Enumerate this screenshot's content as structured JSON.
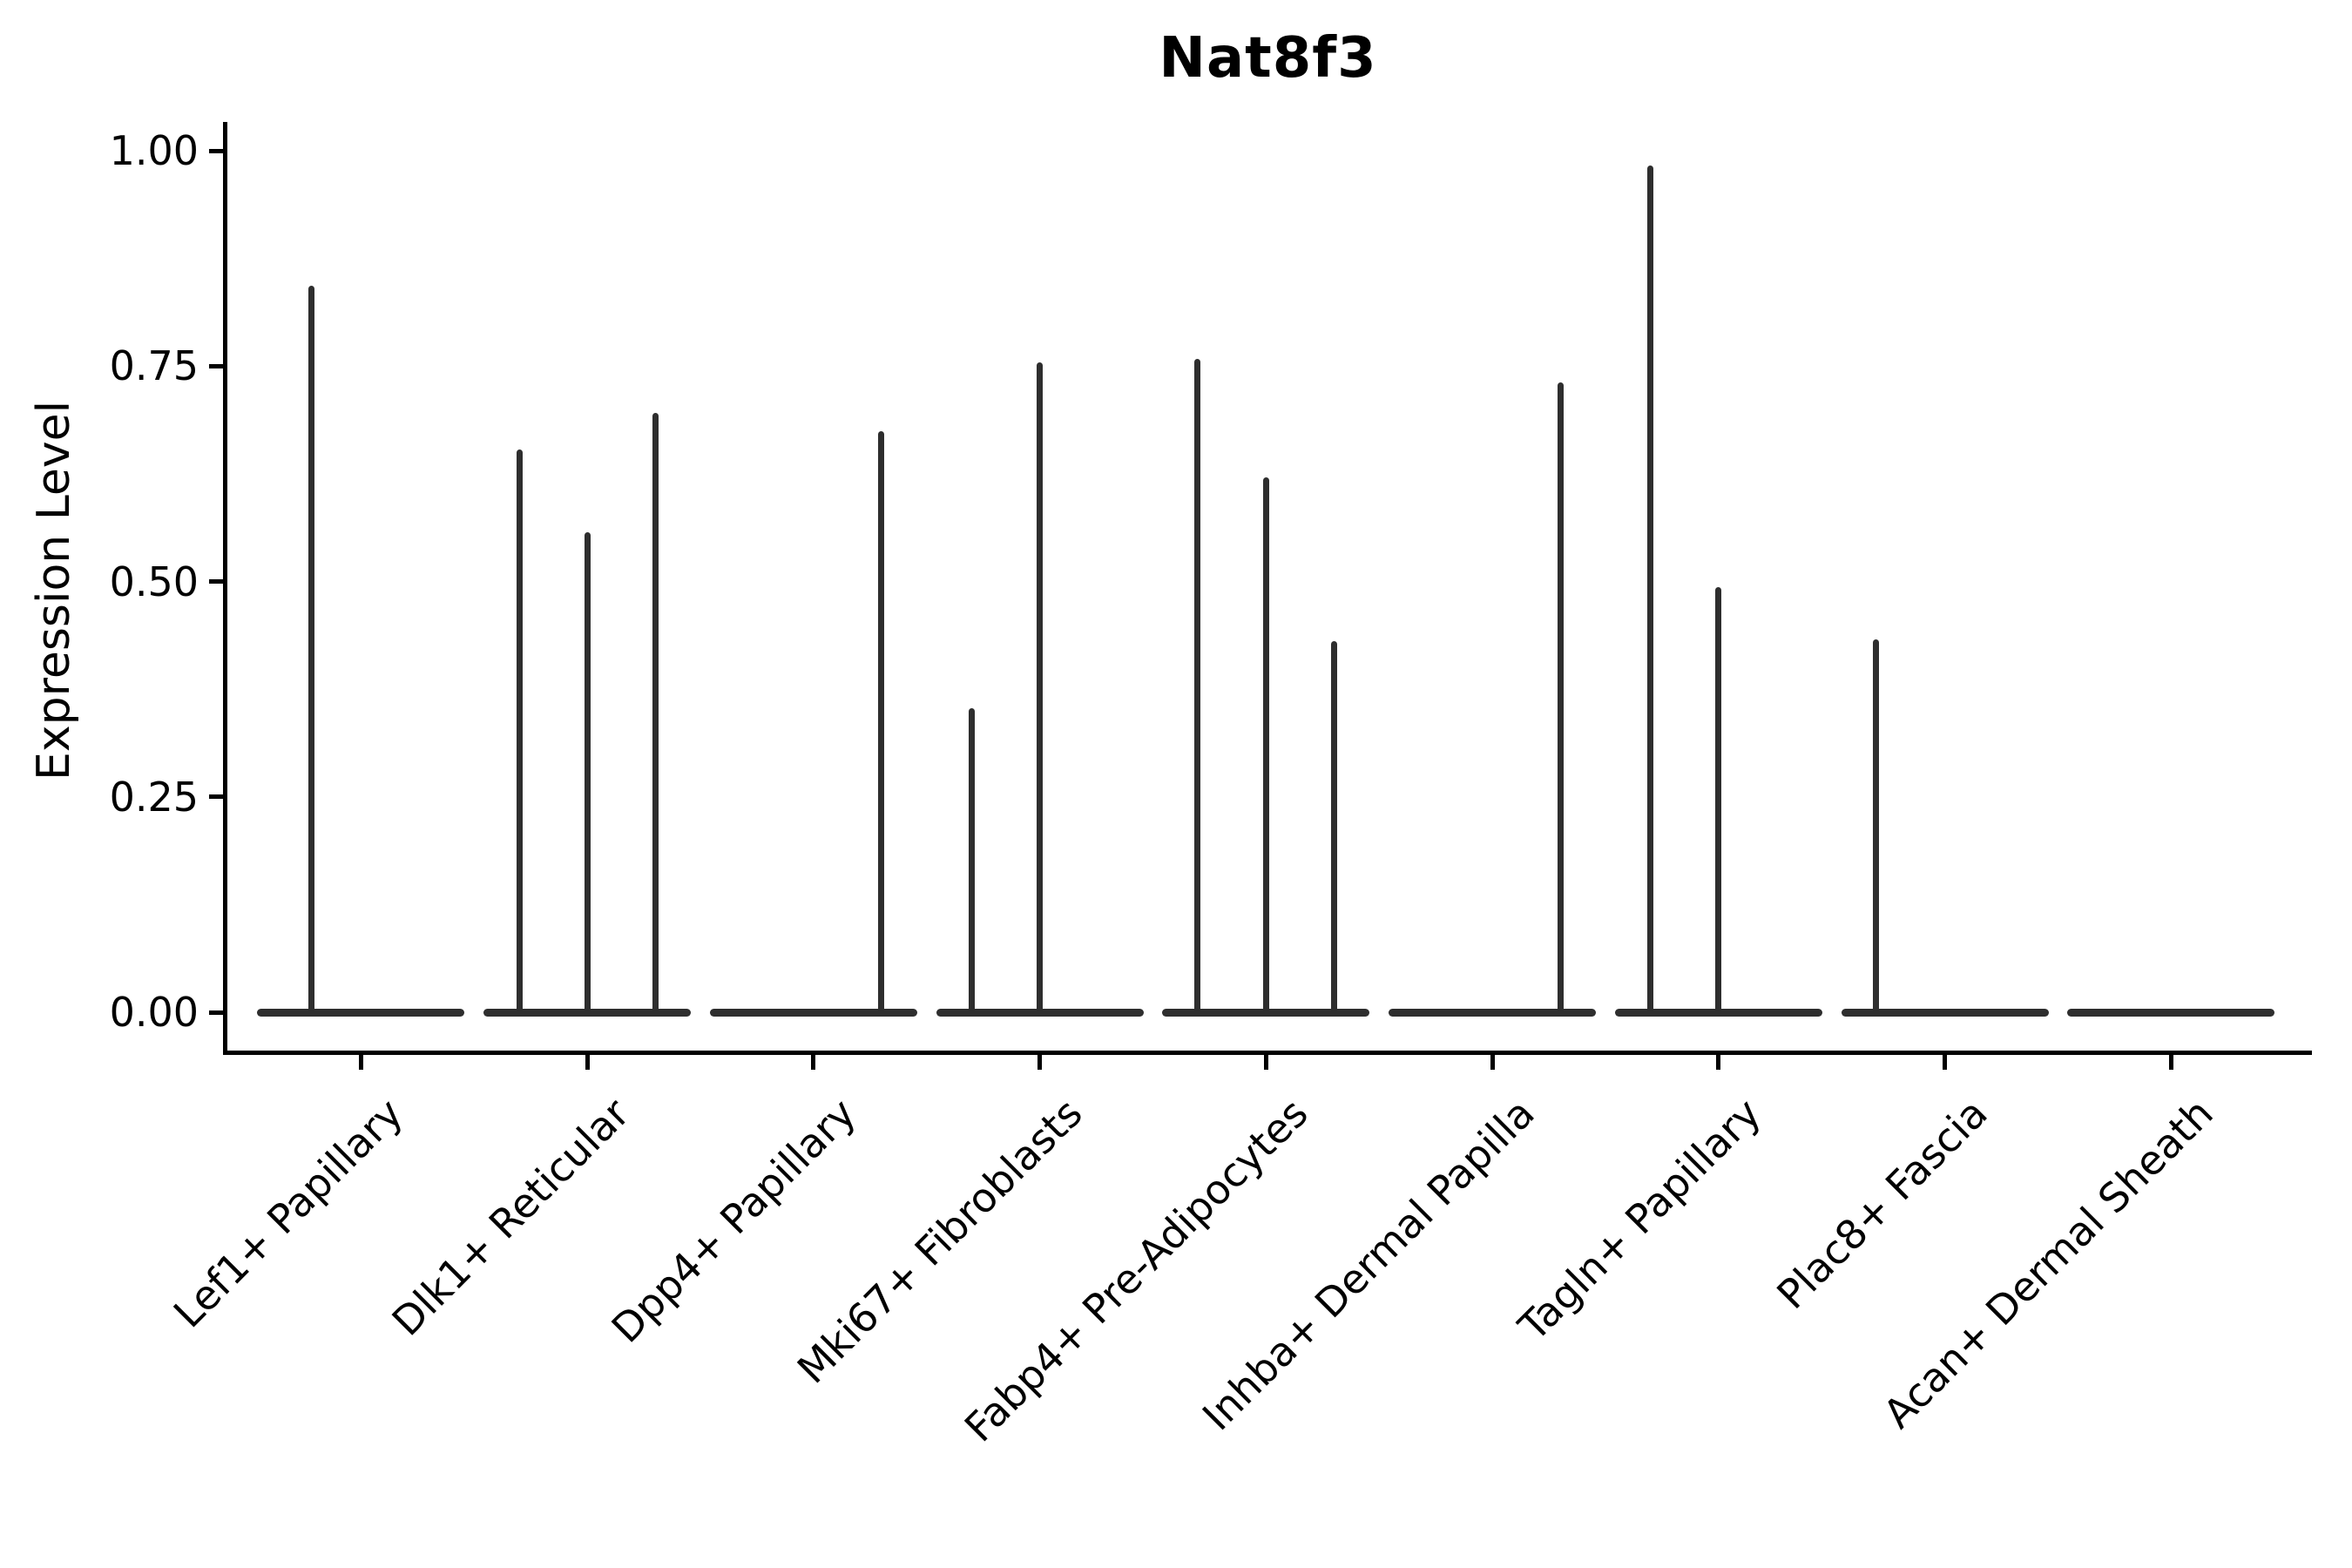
{
  "figure": {
    "background": "#ffffff"
  },
  "colors": {
    "violin": "#2e2e2e",
    "axis": "#000000",
    "text": "#000000"
  },
  "chart_data": {
    "type": "violin",
    "title": "Nat8f3",
    "xlabel": "",
    "ylabel": "Expression Level",
    "ylim": [
      -0.05,
      1.07
    ],
    "grid": false,
    "legend": "none",
    "x_tick_rotation_deg": 45,
    "y_ticks": [
      {
        "label": "1.00",
        "value": 1.0
      },
      {
        "label": "0.75",
        "value": 0.75
      },
      {
        "label": "0.50",
        "value": 0.5
      },
      {
        "label": "0.25",
        "value": 0.25
      },
      {
        "label": "0.00",
        "value": 0.0
      }
    ],
    "categories": [
      {
        "label": "Lef1+ Papillary",
        "spikes": [
          {
            "dx": -57,
            "value": 0.843
          }
        ]
      },
      {
        "label": "Dlk1+ Reticular",
        "spikes": [
          {
            "dx": -78,
            "value": 0.653
          },
          {
            "dx": 0,
            "value": 0.557
          },
          {
            "dx": 78,
            "value": 0.696
          }
        ]
      },
      {
        "label": "Dpp4+ Papillary",
        "spikes": [
          {
            "dx": 78,
            "value": 0.674
          }
        ]
      },
      {
        "label": "Mki67+ Fibroblasts",
        "spikes": [
          {
            "dx": -78,
            "value": 0.353
          },
          {
            "dx": 0,
            "value": 0.754
          }
        ]
      },
      {
        "label": "Fabp4+ Pre-Adipocytes",
        "spikes": [
          {
            "dx": -79,
            "value": 0.758
          },
          {
            "dx": 0,
            "value": 0.621
          },
          {
            "dx": 78,
            "value": 0.431
          }
        ]
      },
      {
        "label": "Inhba+ Dermal Papilla",
        "spikes": [
          {
            "dx": 78,
            "value": 0.731
          }
        ]
      },
      {
        "label": "Tagln+ Papillary",
        "spikes": [
          {
            "dx": -78,
            "value": 0.983
          },
          {
            "dx": 0,
            "value": 0.493
          }
        ]
      },
      {
        "label": "Plac8+ Fascia",
        "spikes": [
          {
            "dx": -79,
            "value": 0.433
          }
        ]
      },
      {
        "label": "Acan+ Dermal Sheath",
        "spikes": []
      }
    ]
  }
}
